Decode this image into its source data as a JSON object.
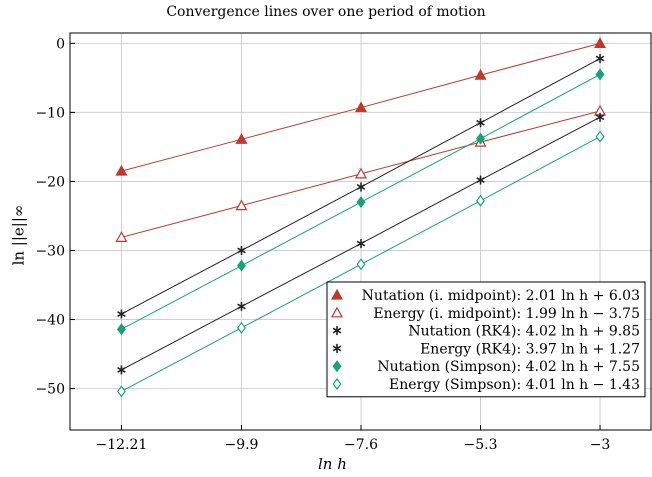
{
  "chart_data": {
    "type": "line",
    "title": "Convergence lines over one period of motion",
    "xlabel": "ln h",
    "ylabel": "ln ||e||∞",
    "x": [
      -12.21,
      -9.9,
      -7.6,
      -5.3,
      -3
    ],
    "x_tick_labels": [
      "−12.21",
      "−9.9",
      "−7.6",
      "−5.3",
      "−3"
    ],
    "y_ticks": [
      0,
      -10,
      -20,
      -30,
      -40,
      -50
    ],
    "y_tick_labels": [
      "0",
      "−10",
      "−20",
      "−30",
      "−40",
      "−50"
    ],
    "xlim": [
      -12.21,
      -3
    ],
    "ylim": [
      -56,
      1.5
    ],
    "grid": true,
    "legend_position": "bottom-right",
    "series": [
      {
        "name": "Nutation (i. midpoint): 2.01 ln h + 6.03",
        "color": "#c0392b",
        "marker": "triangle-filled",
        "values": [
          -18.5,
          -13.9,
          -9.3,
          -4.6,
          0.0
        ]
      },
      {
        "name": "Energy (i. midpoint): 1.99 ln h − 3.75",
        "color": "#c0392b",
        "marker": "triangle-open",
        "values": [
          -28.1,
          -23.5,
          -18.9,
          -14.3,
          -9.8
        ]
      },
      {
        "name": "Nutation (RK4): 4.02 ln h + 9.85",
        "color": "#222222",
        "marker": "asterisk",
        "values": [
          -39.2,
          -30.0,
          -20.8,
          -11.5,
          -2.2
        ]
      },
      {
        "name": "Energy (RK4): 3.97 ln h + 1.27",
        "color": "#222222",
        "marker": "asterisk",
        "values": [
          -47.3,
          -38.1,
          -29.0,
          -19.8,
          -10.7
        ]
      },
      {
        "name": "Nutation (Simpson): 4.02 ln h + 7.55",
        "color": "#16a37a",
        "marker": "diamond-filled",
        "values": [
          -41.4,
          -32.2,
          -23.0,
          -13.8,
          -4.5
        ]
      },
      {
        "name": "Energy (Simpson): 4.01 ln h − 1.43",
        "color": "#16a37a",
        "marker": "diamond-open",
        "values": [
          -50.4,
          -41.2,
          -32.0,
          -22.8,
          -13.5
        ]
      }
    ]
  }
}
